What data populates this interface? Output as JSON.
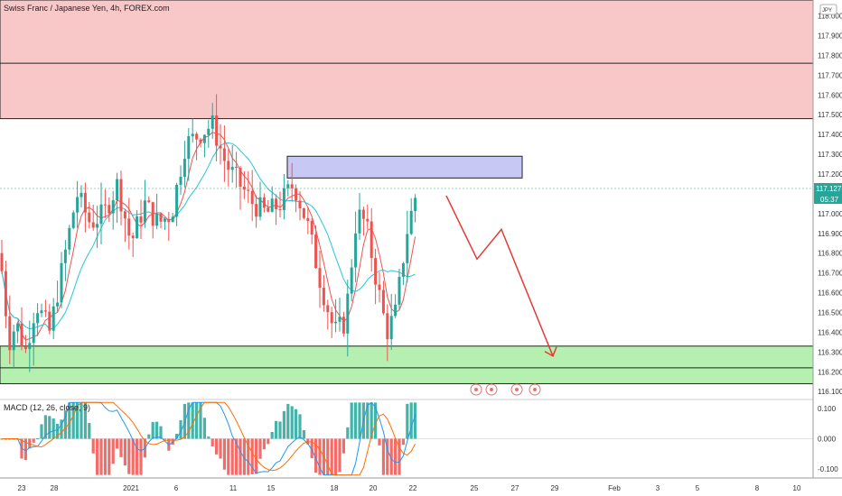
{
  "header": {
    "title": "Swiss Franc / Japanese Yen, 4h, FOREX.com",
    "currency_badge": "JPY",
    "macd_label": "MACD (12, 26, close, 9)"
  },
  "price_axis": {
    "ticks": [
      "118.000",
      "117.900",
      "117.800",
      "117.700",
      "117.600",
      "117.500",
      "117.400",
      "117.300",
      "117.200",
      "117.100",
      "117.000",
      "116.900",
      "116.800",
      "116.700",
      "116.600",
      "116.500",
      "116.400",
      "116.300",
      "116.200",
      "116.100"
    ],
    "last_price": "117.127",
    "countdown": "05:37"
  },
  "macd_axis": {
    "ticks": [
      "0.100",
      "0.000",
      "-0.100"
    ]
  },
  "time_axis": {
    "ticks": [
      "23",
      "28",
      "2021",
      "6",
      "11",
      "15",
      "18",
      "20",
      "22",
      "25",
      "27",
      "29",
      "Feb",
      "3",
      "5",
      "8",
      "10"
    ]
  },
  "colors": {
    "up": "#26a69a",
    "down": "#ef5350",
    "resistance_zone": "#f8c8c8",
    "support_zone": "#b6f0b0",
    "box_zone": "#c8c8f5",
    "projection": "#e53935",
    "ma_fast": "#ef5350",
    "ma_slow": "#26c6da"
  },
  "chart_data": {
    "type": "candlestick",
    "symbol": "Swiss Franc / Japanese Yen, 4h, FOREX.com",
    "y_range": [
      116.06,
      118.08
    ],
    "last_price": 117.127,
    "resistance_zone": [
      117.48,
      118.08
    ],
    "resistance_line": 117.76,
    "support_zone": [
      116.14,
      116.33
    ],
    "support_line": 116.22,
    "supply_box": [
      117.18,
      117.29
    ],
    "projection_path": [
      117.09,
      116.77,
      116.92,
      116.28
    ],
    "macd_y_range": [
      -0.13,
      0.13
    ]
  }
}
